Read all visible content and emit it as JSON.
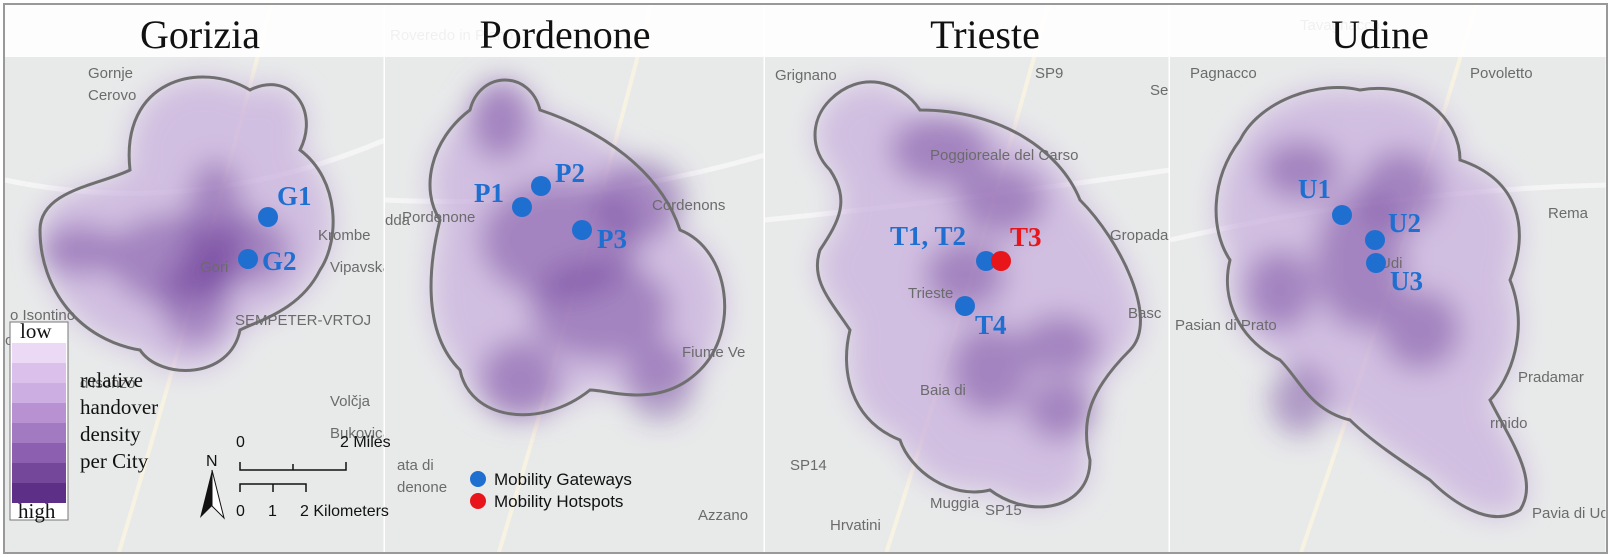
{
  "panels": [
    {
      "title": "Gorizia",
      "points": [
        {
          "label": "G1",
          "color": "#1f6fd0"
        },
        {
          "label": "G2",
          "color": "#1f6fd0"
        }
      ],
      "place_labels": [
        "Gornje",
        "Cerovo",
        "Krombe",
        "Vipavska C",
        "Gori",
        "o Isontino",
        "ono",
        "d'Isonzo",
        "Volčja",
        "Bukovica",
        "SEMPETER-VRTOJ"
      ]
    },
    {
      "title": "Pordenone",
      "points": [
        {
          "label": "P1",
          "color": "#1f6fd0"
        },
        {
          "label": "P2",
          "color": "#1f6fd0"
        },
        {
          "label": "P3",
          "color": "#1f6fd0"
        }
      ],
      "place_labels": [
        "Roveredo in Piano",
        "Cordenons",
        "dda",
        "Pordenone",
        "Fiume Ve",
        "ata di",
        "denone",
        "Azzano"
      ]
    },
    {
      "title": "Trieste",
      "points": [
        {
          "label": "T1, T2",
          "color": "#1f6fd0"
        },
        {
          "label": "T3",
          "color": "#e8151b"
        },
        {
          "label": "T4",
          "color": "#1f6fd0"
        }
      ],
      "place_labels": [
        "Grignano",
        "SP9",
        "Se",
        "Poggioreale del Carso",
        "Gropada",
        "Basc",
        "Trieste",
        "Baia di",
        "Muggia",
        "SP14",
        "Hrvatini",
        "SP15"
      ]
    },
    {
      "title": "Udine",
      "points": [
        {
          "label": "U1",
          "color": "#1f6fd0"
        },
        {
          "label": "U2",
          "color": "#1f6fd0"
        },
        {
          "label": "U3",
          "color": "#1f6fd0"
        }
      ],
      "place_labels": [
        "Tavagnacco",
        "Pagnacco",
        "Povoletto",
        "Rema",
        "Udi",
        "Pasian di Prato",
        "Pradamar",
        "rmido",
        "Pavia di Ud"
      ]
    }
  ],
  "density_legend": {
    "low": "low",
    "lines": [
      "relative",
      "handover",
      "density",
      "per City"
    ],
    "high": "high"
  },
  "scale_bar": {
    "north": "N",
    "miles": [
      "0",
      "2 Miles"
    ],
    "kilometers": [
      "0",
      "1",
      "2 Kilometers"
    ]
  },
  "legend": [
    {
      "label": "Mobility Gateways",
      "color": "#1f6fd0"
    },
    {
      "label": "Mobility Hotspots",
      "color": "#e8151b"
    }
  ]
}
